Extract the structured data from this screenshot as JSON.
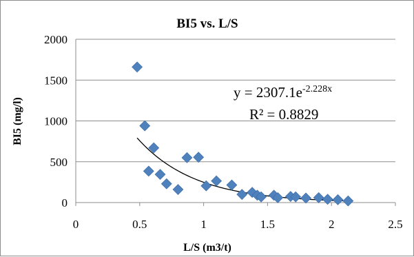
{
  "chart_data": {
    "type": "scatter",
    "title": "BI5 vs. L/S",
    "xlabel": "L/S (m3/t)",
    "ylabel": "BI5 (mg/l)",
    "xlim": [
      0,
      2.5
    ],
    "ylim": [
      0,
      2000
    ],
    "x_ticks": [
      "0",
      "0.5",
      "1",
      "1.5",
      "2",
      "2.5"
    ],
    "y_ticks": [
      "0",
      "500",
      "1000",
      "1500",
      "2000"
    ],
    "grid": "horizontal",
    "legend": "none",
    "marker_color": "#4f81bd",
    "trendline": {
      "type": "exponential",
      "a": 2307.1,
      "b": -2.228,
      "x_range": [
        0.48,
        2.14
      ],
      "equation_prefix": "y = 2307.1e",
      "equation_exponent": "-2.228x",
      "r2_label": "R² = 0.8829"
    },
    "points": [
      {
        "x": 0.48,
        "y": 1660
      },
      {
        "x": 0.54,
        "y": 940
      },
      {
        "x": 0.57,
        "y": 385
      },
      {
        "x": 0.61,
        "y": 670
      },
      {
        "x": 0.66,
        "y": 345
      },
      {
        "x": 0.71,
        "y": 230
      },
      {
        "x": 0.8,
        "y": 160
      },
      {
        "x": 0.87,
        "y": 550
      },
      {
        "x": 0.96,
        "y": 555
      },
      {
        "x": 1.02,
        "y": 205
      },
      {
        "x": 1.1,
        "y": 265
      },
      {
        "x": 1.22,
        "y": 215
      },
      {
        "x": 1.3,
        "y": 100
      },
      {
        "x": 1.38,
        "y": 125
      },
      {
        "x": 1.42,
        "y": 90
      },
      {
        "x": 1.45,
        "y": 70
      },
      {
        "x": 1.55,
        "y": 90
      },
      {
        "x": 1.58,
        "y": 60
      },
      {
        "x": 1.68,
        "y": 75
      },
      {
        "x": 1.72,
        "y": 70
      },
      {
        "x": 1.8,
        "y": 55
      },
      {
        "x": 1.9,
        "y": 60
      },
      {
        "x": 1.97,
        "y": 40
      },
      {
        "x": 2.05,
        "y": 35
      },
      {
        "x": 2.13,
        "y": 20
      }
    ]
  }
}
